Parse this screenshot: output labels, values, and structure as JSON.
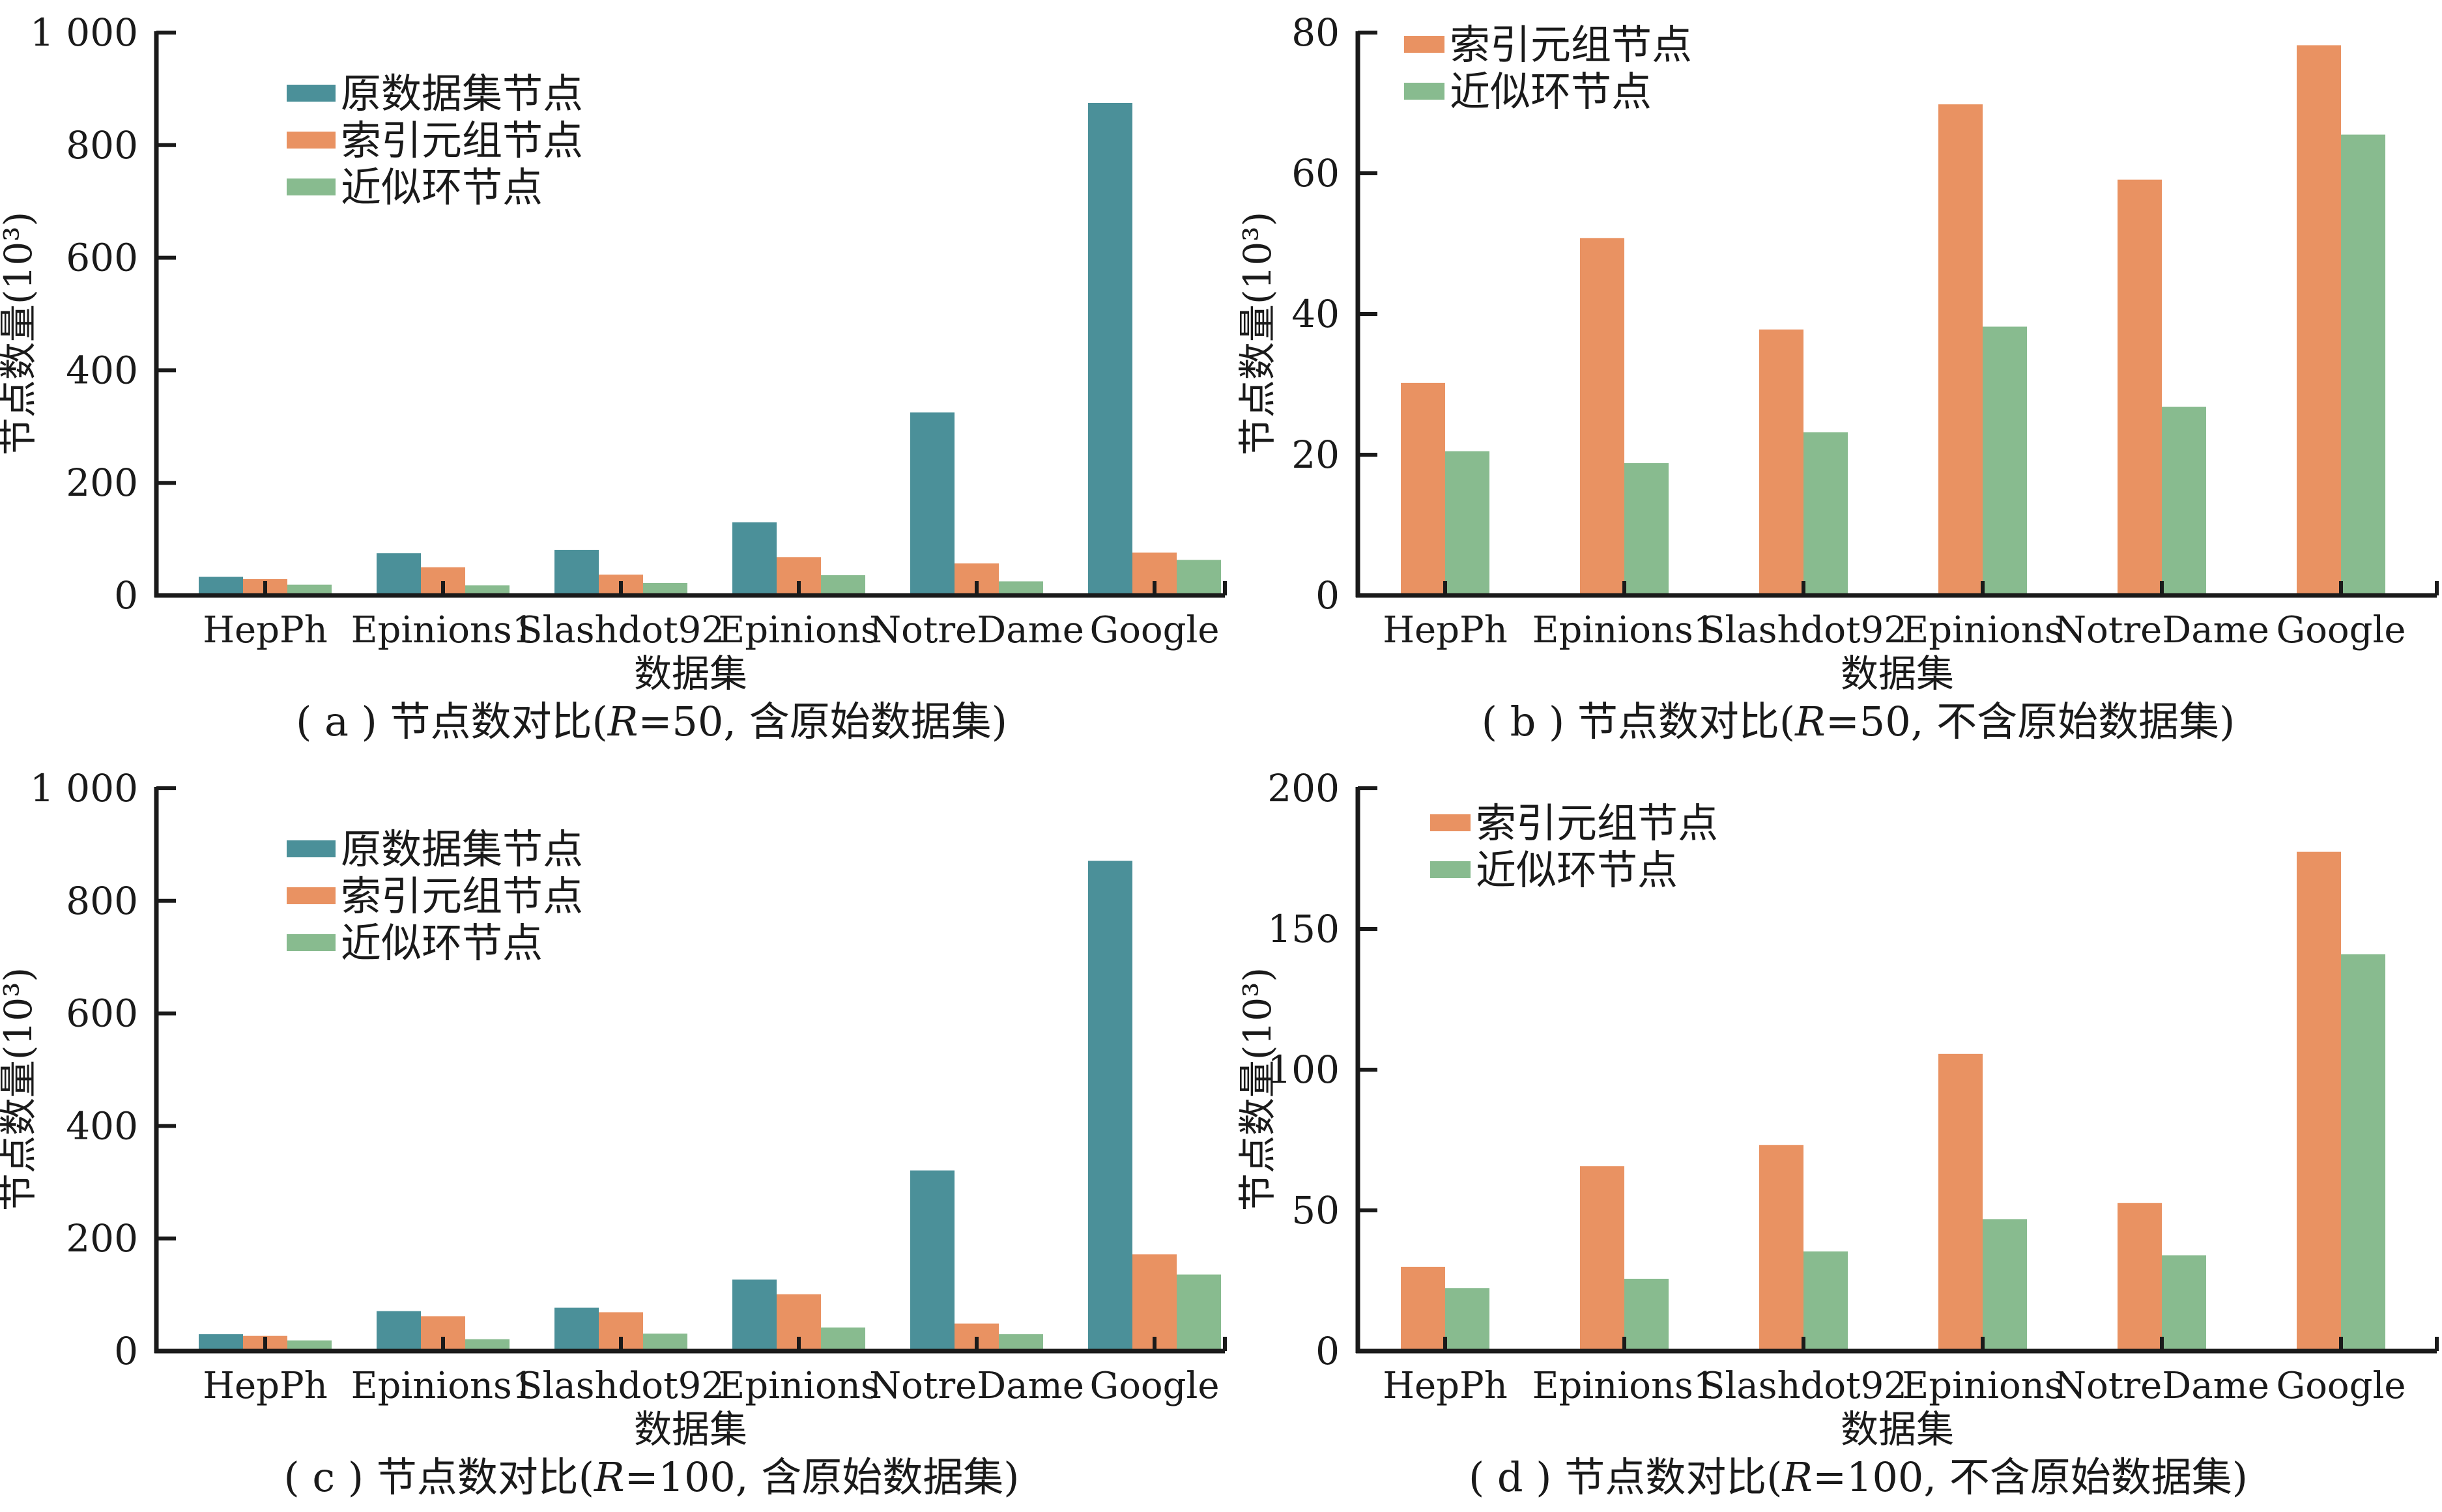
{
  "figure": {
    "colors": {
      "original": "#4b9099",
      "index_tuple": "#e99262",
      "approx_cycle": "#88bb8f"
    }
  },
  "chart_data": [
    {
      "id": "a",
      "type": "bar",
      "caption_prefix": "( a ) 节点数对比(",
      "caption_italic": "R",
      "caption_suffix": "=50, 含原始数据集)",
      "xlabel": "数据集",
      "ylabel": "节点数量(10³)",
      "ylim": [
        0,
        1000
      ],
      "yticks": [
        0,
        200,
        400,
        600,
        800,
        1000
      ],
      "ytick_labels": [
        "0",
        "200",
        "400",
        "600",
        "800",
        "1 000"
      ],
      "legend_position": "upper-left",
      "categories": [
        "HepPh",
        "Epinions1",
        "Slashdot92",
        "Epinions",
        "NotreDame",
        "Google"
      ],
      "series": [
        {
          "key": "original",
          "name": "原数据集节点",
          "values": [
            33,
            75,
            81,
            130,
            325,
            875
          ]
        },
        {
          "key": "index_tuple",
          "name": "索引元组节点",
          "values": [
            29,
            50,
            37,
            68,
            57,
            76
          ]
        },
        {
          "key": "approx_cycle",
          "name": "近似环节点",
          "values": [
            19,
            18,
            22,
            36,
            25,
            63
          ]
        }
      ]
    },
    {
      "id": "b",
      "type": "bar",
      "caption_prefix": "( b ) 节点数对比(",
      "caption_italic": "R",
      "caption_suffix": "=50, 不含原始数据集)",
      "xlabel": "数据集",
      "ylabel": "节点数量(10³)",
      "ylim": [
        0,
        80
      ],
      "yticks": [
        0,
        20,
        40,
        60,
        80
      ],
      "ytick_labels": [
        "0",
        "20",
        "40",
        "60",
        "80"
      ],
      "legend_position": "upper-left",
      "categories": [
        "HepPh",
        "Epinions1",
        "Slashdot92",
        "Epinions",
        "NotreDame",
        "Google"
      ],
      "series": [
        {
          "key": "index_tuple",
          "name": "索引元组节点",
          "values": [
            30.2,
            50.8,
            37.8,
            69.8,
            59.1,
            78.2
          ]
        },
        {
          "key": "approx_cycle",
          "name": "近似环节点",
          "values": [
            20.5,
            18.8,
            23.2,
            38.2,
            26.8,
            65.5
          ]
        }
      ]
    },
    {
      "id": "c",
      "type": "bar",
      "caption_prefix": "( c ) 节点数对比(",
      "caption_italic": "R",
      "caption_suffix": "=100, 含原始数据集)",
      "xlabel": "数据集",
      "ylabel": "节点数量(10³)",
      "ylim": [
        0,
        1000
      ],
      "yticks": [
        0,
        200,
        400,
        600,
        800,
        1000
      ],
      "ytick_labels": [
        "0",
        "200",
        "400",
        "600",
        "800",
        "1 000"
      ],
      "legend_position": "upper-left",
      "categories": [
        "HepPh",
        "Epinions1",
        "Slashdot92",
        "Epinions",
        "NotreDame",
        "Google"
      ],
      "series": [
        {
          "key": "original",
          "name": "原数据集节点",
          "values": [
            30,
            71,
            77,
            127,
            321,
            871
          ]
        },
        {
          "key": "index_tuple",
          "name": "索引元组节点",
          "values": [
            27,
            62,
            69,
            101,
            49,
            172
          ]
        },
        {
          "key": "approx_cycle",
          "name": "近似环节点",
          "values": [
            19,
            21,
            31,
            42,
            30,
            136
          ]
        }
      ]
    },
    {
      "id": "d",
      "type": "bar",
      "caption_prefix": "( d ) 节点数对比(",
      "caption_italic": "R",
      "caption_suffix": "=100, 不含原始数据集)",
      "xlabel": "数据集",
      "ylabel": "节点数量(10³)",
      "ylim": [
        0,
        200
      ],
      "yticks": [
        0,
        50,
        100,
        150,
        200
      ],
      "ytick_labels": [
        "0",
        "50",
        "100",
        "150",
        "200"
      ],
      "legend_position": "upper-left",
      "categories": [
        "HepPh",
        "Epinions1",
        "Slashdot92",
        "Epinions",
        "NotreDame",
        "Google"
      ],
      "series": [
        {
          "key": "index_tuple",
          "name": "索引元组节点",
          "values": [
            29.9,
            65.7,
            73.2,
            105.6,
            52.6,
            177.4
          ]
        },
        {
          "key": "approx_cycle",
          "name": "近似环节点",
          "values": [
            22.4,
            25.7,
            35.4,
            46.9,
            34.0,
            141.0
          ]
        }
      ]
    }
  ]
}
